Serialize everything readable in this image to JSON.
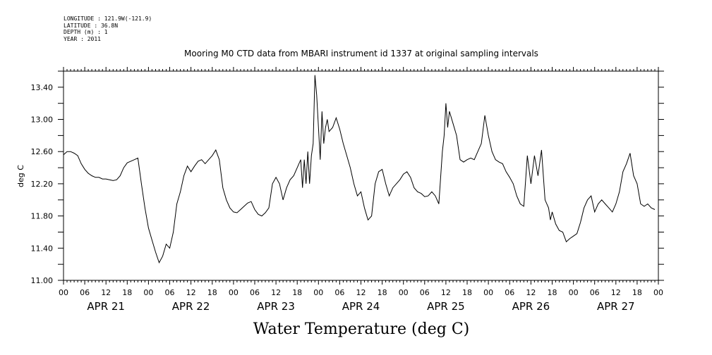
{
  "metadata": {
    "longitude": "LONGITUDE : 121.9W(-121.9)",
    "latitude": "LATITUDE : 36.8N",
    "depth": "DEPTH (m) : 1",
    "year": "YEAR : 2011"
  },
  "chart_data": {
    "type": "line",
    "title": "Mooring M0 CTD data from MBARI instrument id 1337 at original sampling intervals",
    "xlabel": "Water Temperature (deg C)",
    "ylabel": "deg C",
    "ylim": [
      11.0,
      13.6
    ],
    "xlim": [
      0,
      168
    ],
    "yticks": [
      "11.00",
      "11.40",
      "11.80",
      "12.20",
      "12.60",
      "13.00",
      "13.40"
    ],
    "ytick_values": [
      11.0,
      11.4,
      11.8,
      12.2,
      12.6,
      13.0,
      13.4
    ],
    "hour_tick_labels": [
      "00",
      "06",
      "12",
      "18"
    ],
    "day_labels": [
      "APR 21",
      "APR 22",
      "APR 23",
      "APR 24",
      "APR 25",
      "APR 26",
      "APR 27"
    ],
    "x_units": "hours since APR 21 00:00",
    "grid": false,
    "series": [
      {
        "values": [
          [
            0,
            12.56
          ],
          [
            0.5,
            12.58
          ],
          [
            1,
            12.6
          ],
          [
            2,
            12.6
          ],
          [
            3,
            12.58
          ],
          [
            4,
            12.55
          ],
          [
            5,
            12.45
          ],
          [
            6,
            12.38
          ],
          [
            7,
            12.33
          ],
          [
            8,
            12.3
          ],
          [
            9,
            12.28
          ],
          [
            10,
            12.28
          ],
          [
            11,
            12.26
          ],
          [
            12,
            12.26
          ],
          [
            13,
            12.25
          ],
          [
            14,
            12.24
          ],
          [
            15,
            12.25
          ],
          [
            16,
            12.3
          ],
          [
            17,
            12.4
          ],
          [
            18,
            12.46
          ],
          [
            19,
            12.48
          ],
          [
            20,
            12.5
          ],
          [
            21,
            12.52
          ],
          [
            22,
            12.2
          ],
          [
            23,
            11.9
          ],
          [
            24,
            11.65
          ],
          [
            25,
            11.5
          ],
          [
            26,
            11.35
          ],
          [
            27,
            11.22
          ],
          [
            28,
            11.3
          ],
          [
            29,
            11.45
          ],
          [
            30,
            11.4
          ],
          [
            31,
            11.6
          ],
          [
            32,
            11.95
          ],
          [
            33,
            12.1
          ],
          [
            34,
            12.3
          ],
          [
            35,
            12.42
          ],
          [
            36,
            12.35
          ],
          [
            37,
            12.42
          ],
          [
            38,
            12.48
          ],
          [
            39,
            12.5
          ],
          [
            40,
            12.45
          ],
          [
            41,
            12.5
          ],
          [
            42,
            12.55
          ],
          [
            43,
            12.62
          ],
          [
            44,
            12.5
          ],
          [
            45,
            12.15
          ],
          [
            46,
            12.0
          ],
          [
            47,
            11.9
          ],
          [
            48,
            11.85
          ],
          [
            49,
            11.84
          ],
          [
            50,
            11.88
          ],
          [
            51,
            11.92
          ],
          [
            52,
            11.96
          ],
          [
            53,
            11.98
          ],
          [
            54,
            11.88
          ],
          [
            55,
            11.82
          ],
          [
            56,
            11.8
          ],
          [
            57,
            11.84
          ],
          [
            58,
            11.9
          ],
          [
            59,
            12.2
          ],
          [
            60,
            12.28
          ],
          [
            61,
            12.2
          ],
          [
            62,
            12.0
          ],
          [
            63,
            12.15
          ],
          [
            64,
            12.25
          ],
          [
            65,
            12.3
          ],
          [
            66,
            12.4
          ],
          [
            67,
            12.5
          ],
          [
            67.5,
            12.15
          ],
          [
            68,
            12.5
          ],
          [
            68.5,
            12.2
          ],
          [
            69,
            12.6
          ],
          [
            69.5,
            12.2
          ],
          [
            70,
            12.55
          ],
          [
            70.5,
            12.7
          ],
          [
            71,
            13.55
          ],
          [
            71.5,
            13.3
          ],
          [
            72,
            12.9
          ],
          [
            72.5,
            12.5
          ],
          [
            73,
            13.1
          ],
          [
            73.5,
            12.7
          ],
          [
            74,
            12.9
          ],
          [
            74.5,
            13.0
          ],
          [
            75,
            12.85
          ],
          [
            76,
            12.9
          ],
          [
            77,
            13.02
          ],
          [
            78,
            12.88
          ],
          [
            79,
            12.7
          ],
          [
            80,
            12.55
          ],
          [
            81,
            12.4
          ],
          [
            82,
            12.2
          ],
          [
            83,
            12.05
          ],
          [
            84,
            12.1
          ],
          [
            85,
            11.9
          ],
          [
            86,
            11.75
          ],
          [
            87,
            11.8
          ],
          [
            88,
            12.2
          ],
          [
            89,
            12.35
          ],
          [
            90,
            12.38
          ],
          [
            91,
            12.2
          ],
          [
            92,
            12.05
          ],
          [
            93,
            12.15
          ],
          [
            94,
            12.2
          ],
          [
            95,
            12.25
          ],
          [
            96,
            12.32
          ],
          [
            97,
            12.35
          ],
          [
            98,
            12.28
          ],
          [
            99,
            12.15
          ],
          [
            100,
            12.1
          ],
          [
            101,
            12.08
          ],
          [
            102,
            12.04
          ],
          [
            103,
            12.05
          ],
          [
            104,
            12.1
          ],
          [
            105,
            12.05
          ],
          [
            106,
            11.95
          ],
          [
            107,
            12.6
          ],
          [
            107.5,
            12.8
          ],
          [
            108,
            13.2
          ],
          [
            108.5,
            12.9
          ],
          [
            109,
            13.1
          ],
          [
            110,
            12.95
          ],
          [
            111,
            12.8
          ],
          [
            112,
            12.5
          ],
          [
            113,
            12.47
          ],
          [
            114,
            12.5
          ],
          [
            115,
            12.52
          ],
          [
            116,
            12.5
          ],
          [
            117,
            12.6
          ],
          [
            118,
            12.7
          ],
          [
            119,
            13.05
          ],
          [
            120,
            12.8
          ],
          [
            121,
            12.6
          ],
          [
            122,
            12.5
          ],
          [
            123,
            12.47
          ],
          [
            124,
            12.45
          ],
          [
            125,
            12.35
          ],
          [
            126,
            12.28
          ],
          [
            127,
            12.2
          ],
          [
            128,
            12.05
          ],
          [
            129,
            11.95
          ],
          [
            130,
            11.92
          ],
          [
            131,
            12.55
          ],
          [
            132,
            12.2
          ],
          [
            133,
            12.55
          ],
          [
            134,
            12.3
          ],
          [
            135,
            12.62
          ],
          [
            136,
            12.0
          ],
          [
            137,
            11.9
          ],
          [
            137.5,
            11.75
          ],
          [
            138,
            11.85
          ],
          [
            139,
            11.7
          ],
          [
            140,
            11.62
          ],
          [
            141,
            11.6
          ],
          [
            142,
            11.48
          ],
          [
            143,
            11.52
          ],
          [
            144,
            11.55
          ],
          [
            145,
            11.58
          ],
          [
            146,
            11.72
          ],
          [
            147,
            11.9
          ],
          [
            148,
            12.0
          ],
          [
            149,
            12.05
          ],
          [
            150,
            11.85
          ],
          [
            151,
            11.95
          ],
          [
            152,
            12.0
          ],
          [
            153,
            11.95
          ],
          [
            154,
            11.9
          ],
          [
            155,
            11.85
          ],
          [
            156,
            11.95
          ],
          [
            157,
            12.1
          ],
          [
            158,
            12.35
          ],
          [
            159,
            12.45
          ],
          [
            160,
            12.58
          ],
          [
            161,
            12.3
          ],
          [
            162,
            12.2
          ],
          [
            163,
            11.95
          ],
          [
            164,
            11.92
          ],
          [
            165,
            11.95
          ],
          [
            166,
            11.9
          ],
          [
            167,
            11.88
          ]
        ]
      }
    ]
  }
}
